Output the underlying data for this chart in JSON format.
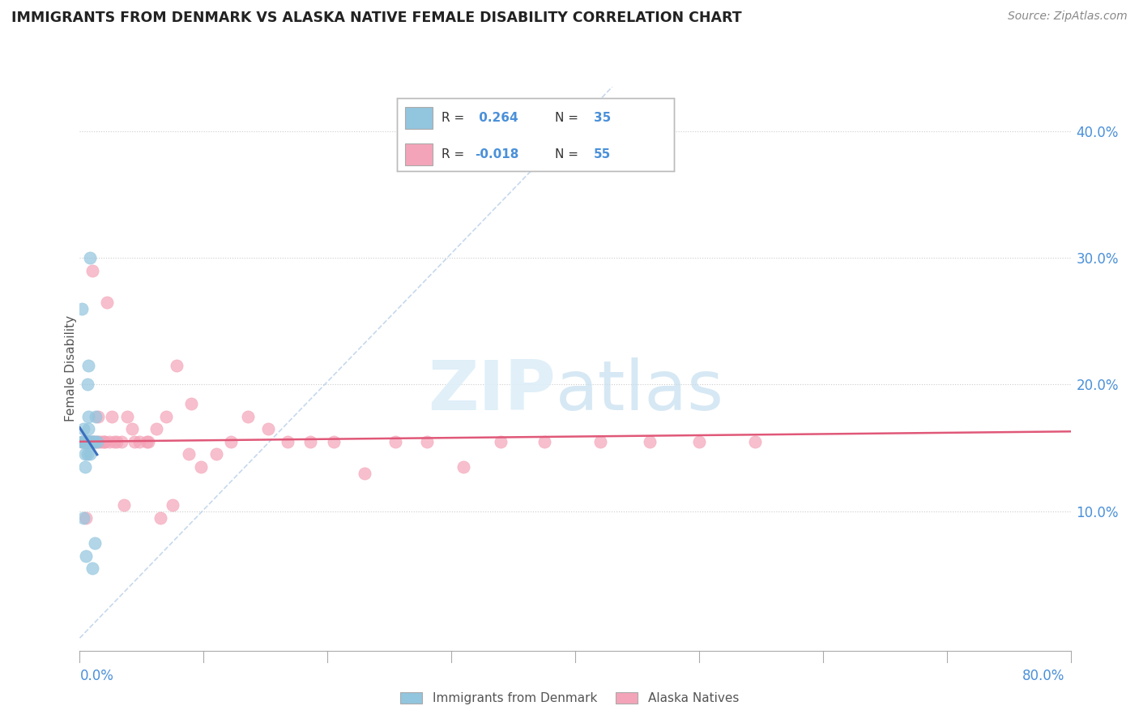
{
  "title": "IMMIGRANTS FROM DENMARK VS ALASKA NATIVE FEMALE DISABILITY CORRELATION CHART",
  "source": "Source: ZipAtlas.com",
  "ylabel": "Female Disability",
  "yticks": [
    "10.0%",
    "20.0%",
    "30.0%",
    "40.0%"
  ],
  "ytick_vals": [
    0.1,
    0.2,
    0.3,
    0.4
  ],
  "xlim": [
    0.0,
    0.8
  ],
  "ylim": [
    -0.01,
    0.435
  ],
  "blue_color": "#92c5de",
  "pink_color": "#f4a4b8",
  "trend_blue": "#3a6fbf",
  "trend_pink": "#e05878",
  "blue_scatter_x": [
    0.002,
    0.003,
    0.003,
    0.003,
    0.004,
    0.004,
    0.004,
    0.005,
    0.005,
    0.005,
    0.005,
    0.006,
    0.006,
    0.006,
    0.006,
    0.007,
    0.007,
    0.007,
    0.008,
    0.008,
    0.009,
    0.01,
    0.01,
    0.011,
    0.012,
    0.012,
    0.013,
    0.014,
    0.002,
    0.003,
    0.004,
    0.005,
    0.006,
    0.007,
    0.008
  ],
  "blue_scatter_y": [
    0.26,
    0.155,
    0.155,
    0.095,
    0.155,
    0.155,
    0.145,
    0.155,
    0.155,
    0.155,
    0.065,
    0.155,
    0.155,
    0.145,
    0.2,
    0.175,
    0.155,
    0.215,
    0.3,
    0.145,
    0.155,
    0.155,
    0.055,
    0.155,
    0.155,
    0.075,
    0.175,
    0.155,
    0.155,
    0.165,
    0.135,
    0.155,
    0.155,
    0.165,
    0.155
  ],
  "pink_scatter_x": [
    0.002,
    0.003,
    0.004,
    0.005,
    0.006,
    0.007,
    0.008,
    0.01,
    0.012,
    0.014,
    0.016,
    0.018,
    0.02,
    0.022,
    0.024,
    0.026,
    0.03,
    0.034,
    0.038,
    0.042,
    0.048,
    0.055,
    0.062,
    0.07,
    0.078,
    0.088,
    0.098,
    0.11,
    0.122,
    0.136,
    0.152,
    0.168,
    0.186,
    0.205,
    0.23,
    0.255,
    0.28,
    0.31,
    0.34,
    0.375,
    0.42,
    0.46,
    0.5,
    0.545,
    0.005,
    0.01,
    0.015,
    0.02,
    0.028,
    0.036,
    0.044,
    0.054,
    0.065,
    0.075,
    0.09
  ],
  "pink_scatter_y": [
    0.155,
    0.155,
    0.155,
    0.155,
    0.155,
    0.155,
    0.155,
    0.155,
    0.155,
    0.155,
    0.155,
    0.155,
    0.155,
    0.265,
    0.155,
    0.175,
    0.155,
    0.155,
    0.175,
    0.165,
    0.155,
    0.155,
    0.165,
    0.175,
    0.215,
    0.145,
    0.135,
    0.145,
    0.155,
    0.175,
    0.165,
    0.155,
    0.155,
    0.155,
    0.13,
    0.155,
    0.155,
    0.135,
    0.155,
    0.155,
    0.155,
    0.155,
    0.155,
    0.155,
    0.095,
    0.29,
    0.175,
    0.155,
    0.155,
    0.105,
    0.155,
    0.155,
    0.095,
    0.105,
    0.185
  ]
}
